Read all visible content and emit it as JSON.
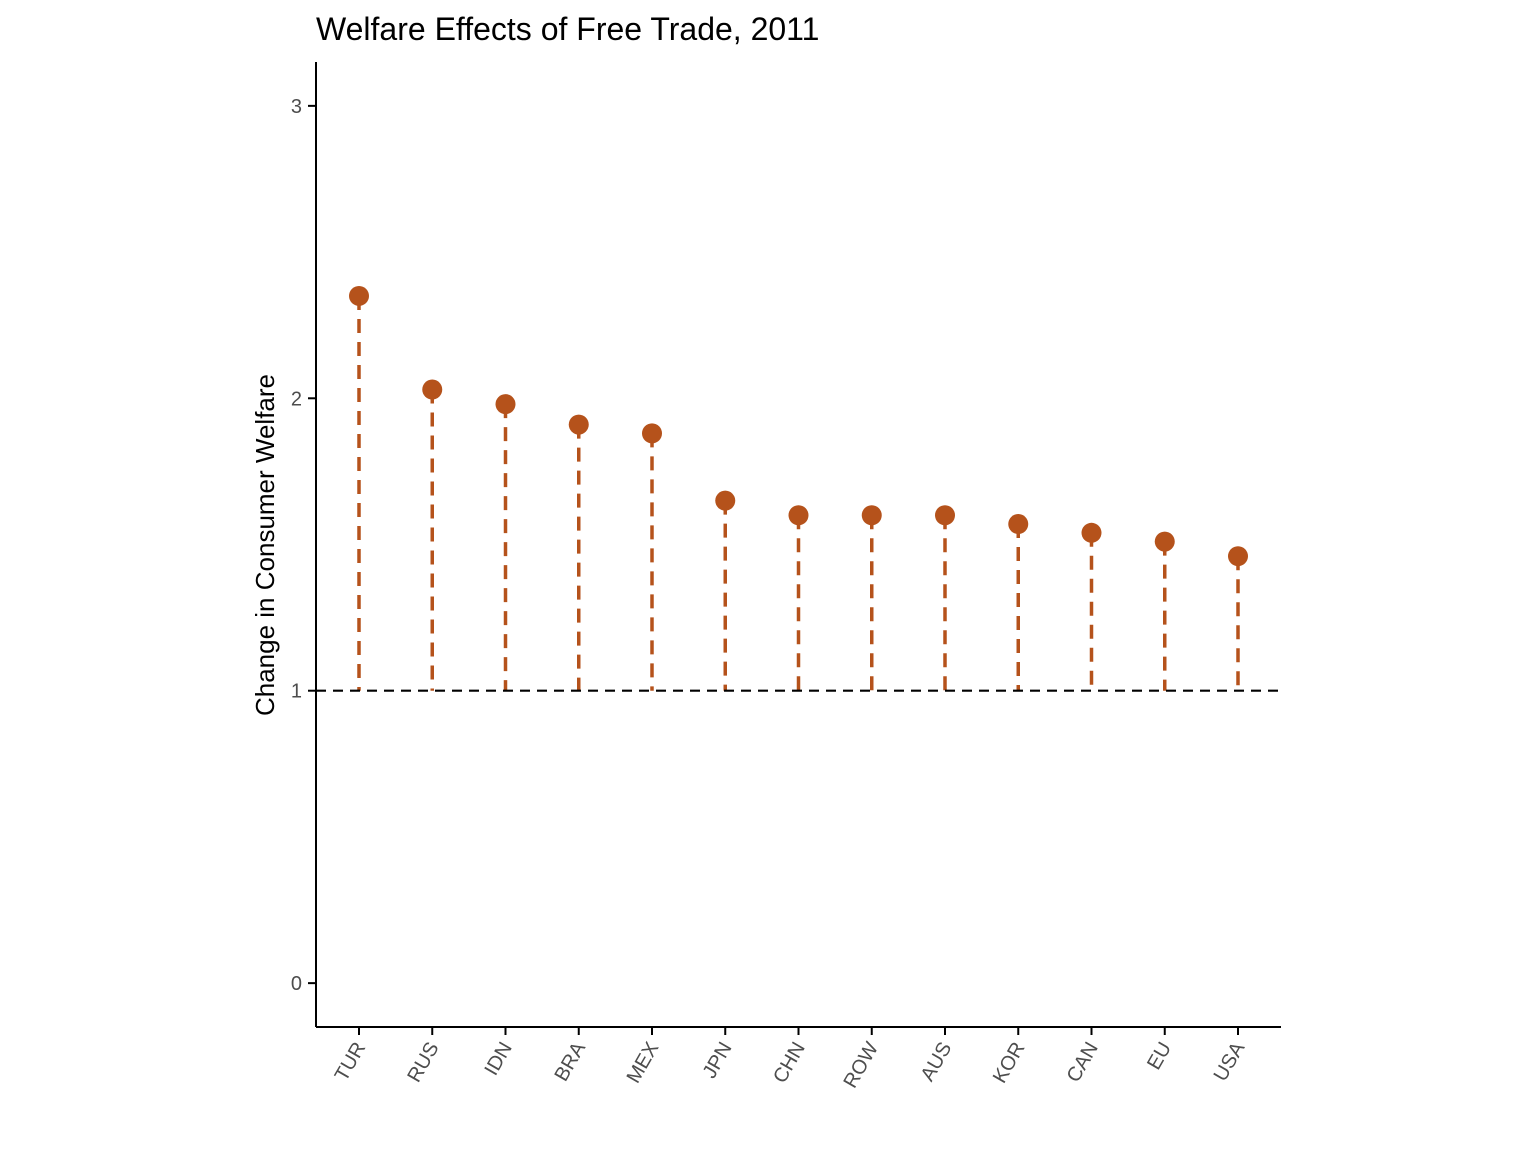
{
  "chart_data": {
    "type": "lollipop",
    "title": "Welfare Effects of Free Trade, 2011",
    "xlabel": "",
    "ylabel": "Change in Consumer Welfare",
    "categories": [
      "TUR",
      "RUS",
      "IDN",
      "BRA",
      "MEX",
      "JPN",
      "CHN",
      "ROW",
      "AUS",
      "KOR",
      "CAN",
      "EU",
      "USA"
    ],
    "values": [
      2.35,
      2.03,
      1.98,
      1.91,
      1.88,
      1.65,
      1.6,
      1.6,
      1.6,
      1.57,
      1.54,
      1.51,
      1.46
    ],
    "baseline": 1,
    "ylim": [
      -0.15,
      3.15
    ],
    "yticks": [
      0,
      1,
      2,
      3
    ],
    "grid": false,
    "legend": "none",
    "colors": {
      "points": "#b5521b",
      "stems": "#b5521b",
      "baseline": "#000000",
      "axes": "#000000"
    }
  }
}
